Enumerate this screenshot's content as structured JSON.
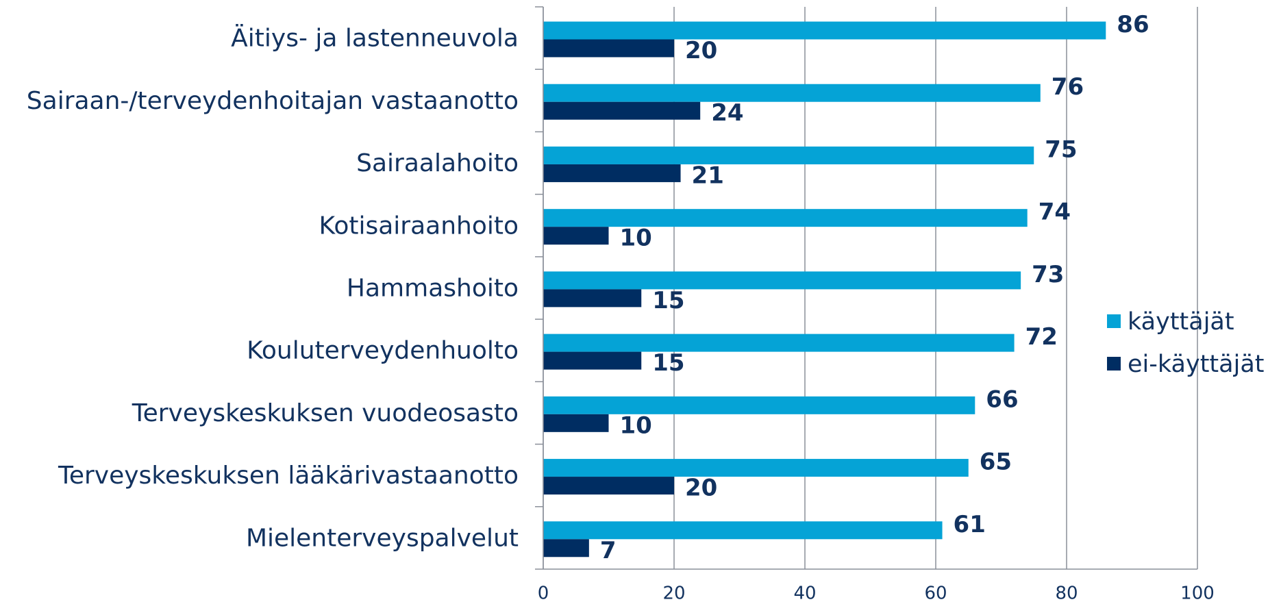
{
  "chart_data": {
    "type": "bar",
    "orientation": "horizontal",
    "categories": [
      "Äitiys- ja lastenneuvola",
      "Sairaan-/terveydenhoitajan vastaanotto",
      "Sairaalahoito",
      "Kotisairaanhoito",
      "Hammashoito",
      "Kouluterveydenhuolto",
      "Terveyskeskuksen vuodeosasto",
      "Terveyskeskuksen lääkärivastaanotto",
      "Mielenterveyspalvelut"
    ],
    "series": [
      {
        "name": "käyttäjät",
        "color": "#05a3d6",
        "values": [
          86,
          76,
          75,
          74,
          73,
          72,
          66,
          65,
          61
        ]
      },
      {
        "name": "ei-käyttäjät",
        "color": "#002d62",
        "values": [
          20,
          24,
          21,
          10,
          15,
          15,
          10,
          20,
          7
        ]
      }
    ],
    "xlim": [
      0,
      100
    ],
    "xticks": [
      0,
      20,
      40,
      60,
      80,
      100
    ],
    "grid": true,
    "legend": "right"
  }
}
